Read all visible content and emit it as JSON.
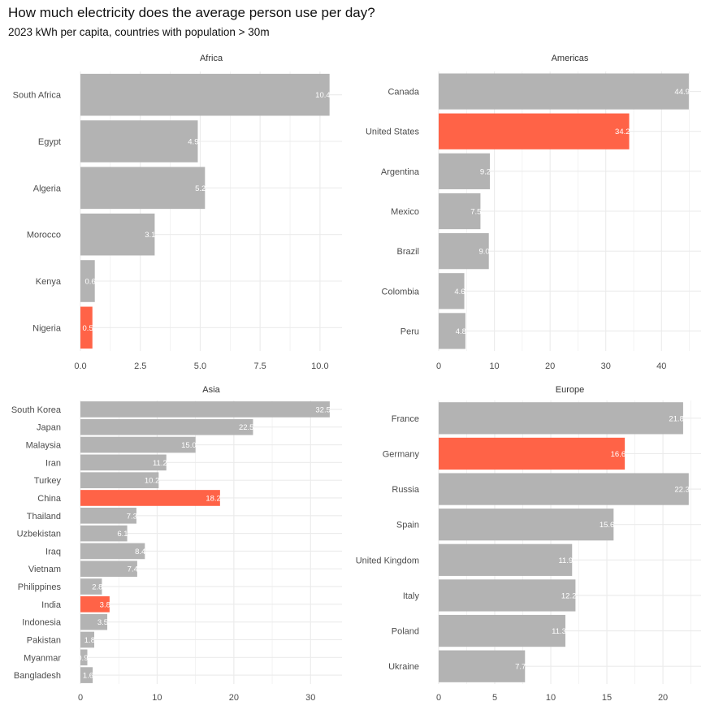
{
  "title": "How much electricity does the average person use per day?",
  "subtitle": "2023 kWh per capita, countries with population > 30m",
  "colors": {
    "default": "#b3b3b3",
    "highlight": "#ff6347",
    "grid": "#ebebeb"
  },
  "chart_data": [
    {
      "type": "bar",
      "orientation": "horizontal",
      "panel": "Africa",
      "categories": [
        "South Africa",
        "Egypt",
        "Algeria",
        "Morocco",
        "Kenya",
        "Nigeria"
      ],
      "values": [
        10.4,
        4.9,
        5.2,
        3.1,
        0.6,
        0.5
      ],
      "labels": [
        "10.4",
        "4.9",
        "5.2",
        "3.1",
        "0.6",
        "0.5"
      ],
      "highlight": [
        "Nigeria"
      ],
      "xticks": [
        "0.0",
        "2.5",
        "5.0",
        "7.5",
        "10.0"
      ],
      "xtick_values": [
        0,
        2.5,
        5,
        7.5,
        10
      ],
      "xlim": [
        0,
        10.92
      ]
    },
    {
      "type": "bar",
      "orientation": "horizontal",
      "panel": "Americas",
      "categories": [
        "Canada",
        "United States",
        "Argentina",
        "Mexico",
        "Brazil",
        "Colombia",
        "Peru"
      ],
      "values": [
        44.9,
        34.2,
        9.2,
        7.5,
        9.0,
        4.6,
        4.8
      ],
      "labels": [
        "44.9",
        "34.2",
        "9.2",
        "7.5",
        "9.0",
        "4.6",
        "4.8"
      ],
      "highlight": [
        "United States"
      ],
      "xticks": [
        "0",
        "10",
        "20",
        "30",
        "40"
      ],
      "xtick_values": [
        0,
        10,
        20,
        30,
        40
      ],
      "xlim": [
        0,
        47.1
      ]
    },
    {
      "type": "bar",
      "orientation": "horizontal",
      "panel": "Asia",
      "categories": [
        "South Korea",
        "Japan",
        "Malaysia",
        "Iran",
        "Turkey",
        "China",
        "Thailand",
        "Uzbekistan",
        "Iraq",
        "Vietnam",
        "Philippines",
        "India",
        "Indonesia",
        "Pakistan",
        "Myanmar",
        "Bangladesh"
      ],
      "values": [
        32.5,
        22.5,
        15.0,
        11.2,
        10.2,
        18.2,
        7.3,
        6.1,
        8.4,
        7.4,
        2.8,
        3.8,
        3.5,
        1.8,
        0.9,
        1.6
      ],
      "labels": [
        "32.5",
        "22.5",
        "15.0",
        "11.2",
        "10.2",
        "18.2",
        "7.3",
        "6.1",
        "8.4",
        "7.4",
        "2.8",
        "3.8",
        "3.5",
        "1.8",
        "0.9",
        "1.6"
      ],
      "highlight": [
        "China",
        "India"
      ],
      "xticks": [
        "0",
        "10",
        "20",
        "30"
      ],
      "xtick_values": [
        0,
        10,
        20,
        30
      ],
      "xlim": [
        0,
        34.1
      ]
    },
    {
      "type": "bar",
      "orientation": "horizontal",
      "panel": "Europe",
      "categories": [
        "France",
        "Germany",
        "Russia",
        "Spain",
        "United Kingdom",
        "Italy",
        "Poland",
        "Ukraine"
      ],
      "values": [
        21.8,
        16.6,
        22.3,
        15.6,
        11.9,
        12.2,
        11.3,
        7.7
      ],
      "labels": [
        "21.8",
        "16.6",
        "22.3",
        "15.6",
        "11.9",
        "12.2",
        "11.3",
        "7.7"
      ],
      "highlight": [
        "Germany"
      ],
      "xticks": [
        "0",
        "5",
        "10",
        "15",
        "20"
      ],
      "xtick_values": [
        0,
        5,
        10,
        15,
        20
      ],
      "xlim": [
        0,
        23.4
      ]
    }
  ]
}
